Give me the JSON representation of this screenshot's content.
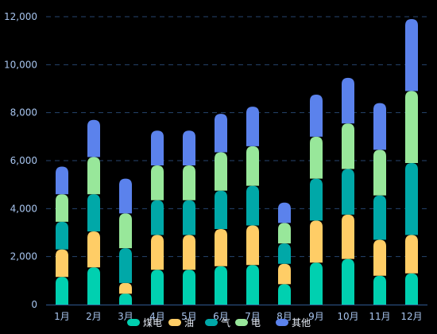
{
  "chart_data": {
    "type": "bar",
    "stacked": true,
    "categories": [
      "1月",
      "2月",
      "3月",
      "4月",
      "5月",
      "6月",
      "7月",
      "8月",
      "9月",
      "10月",
      "11月",
      "12月"
    ],
    "series": [
      {
        "name": "煤电",
        "color": "#00d0b0",
        "values": [
          1150,
          1550,
          450,
          1450,
          1450,
          1600,
          1650,
          850,
          1750,
          1900,
          1200,
          1300
        ]
      },
      {
        "name": "油",
        "color": "#ffcd66",
        "values": [
          1150,
          1500,
          450,
          1450,
          1450,
          1550,
          1650,
          850,
          1750,
          1850,
          1500,
          1600
        ]
      },
      {
        "name": "气",
        "color": "#00a8a8",
        "values": [
          1150,
          1550,
          1450,
          1450,
          1450,
          1600,
          1650,
          850,
          1750,
          1900,
          1850,
          3000
        ]
      },
      {
        "name": "电",
        "color": "#98e79a",
        "values": [
          1150,
          1550,
          1450,
          1450,
          1450,
          1600,
          1650,
          850,
          1750,
          1900,
          1900,
          3000
        ]
      },
      {
        "name": "其他",
        "color": "#5b82ec",
        "values": [
          1150,
          1550,
          1450,
          1450,
          1450,
          1600,
          1650,
          850,
          1750,
          1900,
          1950,
          3000
        ]
      }
    ],
    "ylim": [
      0,
      12000
    ],
    "yticks": [
      "0",
      "2,000",
      "4,000",
      "6,000",
      "8,000",
      "10,000",
      "12,000"
    ],
    "grid": true,
    "legend": "bottom",
    "title": "",
    "xlabel": "",
    "ylabel": "",
    "colors": {
      "axis_text": "#a7c4ee",
      "grid": "#26456e",
      "axis_line": "#2f5a90",
      "legend_text": "#e8eef8",
      "background": "#000000"
    }
  }
}
